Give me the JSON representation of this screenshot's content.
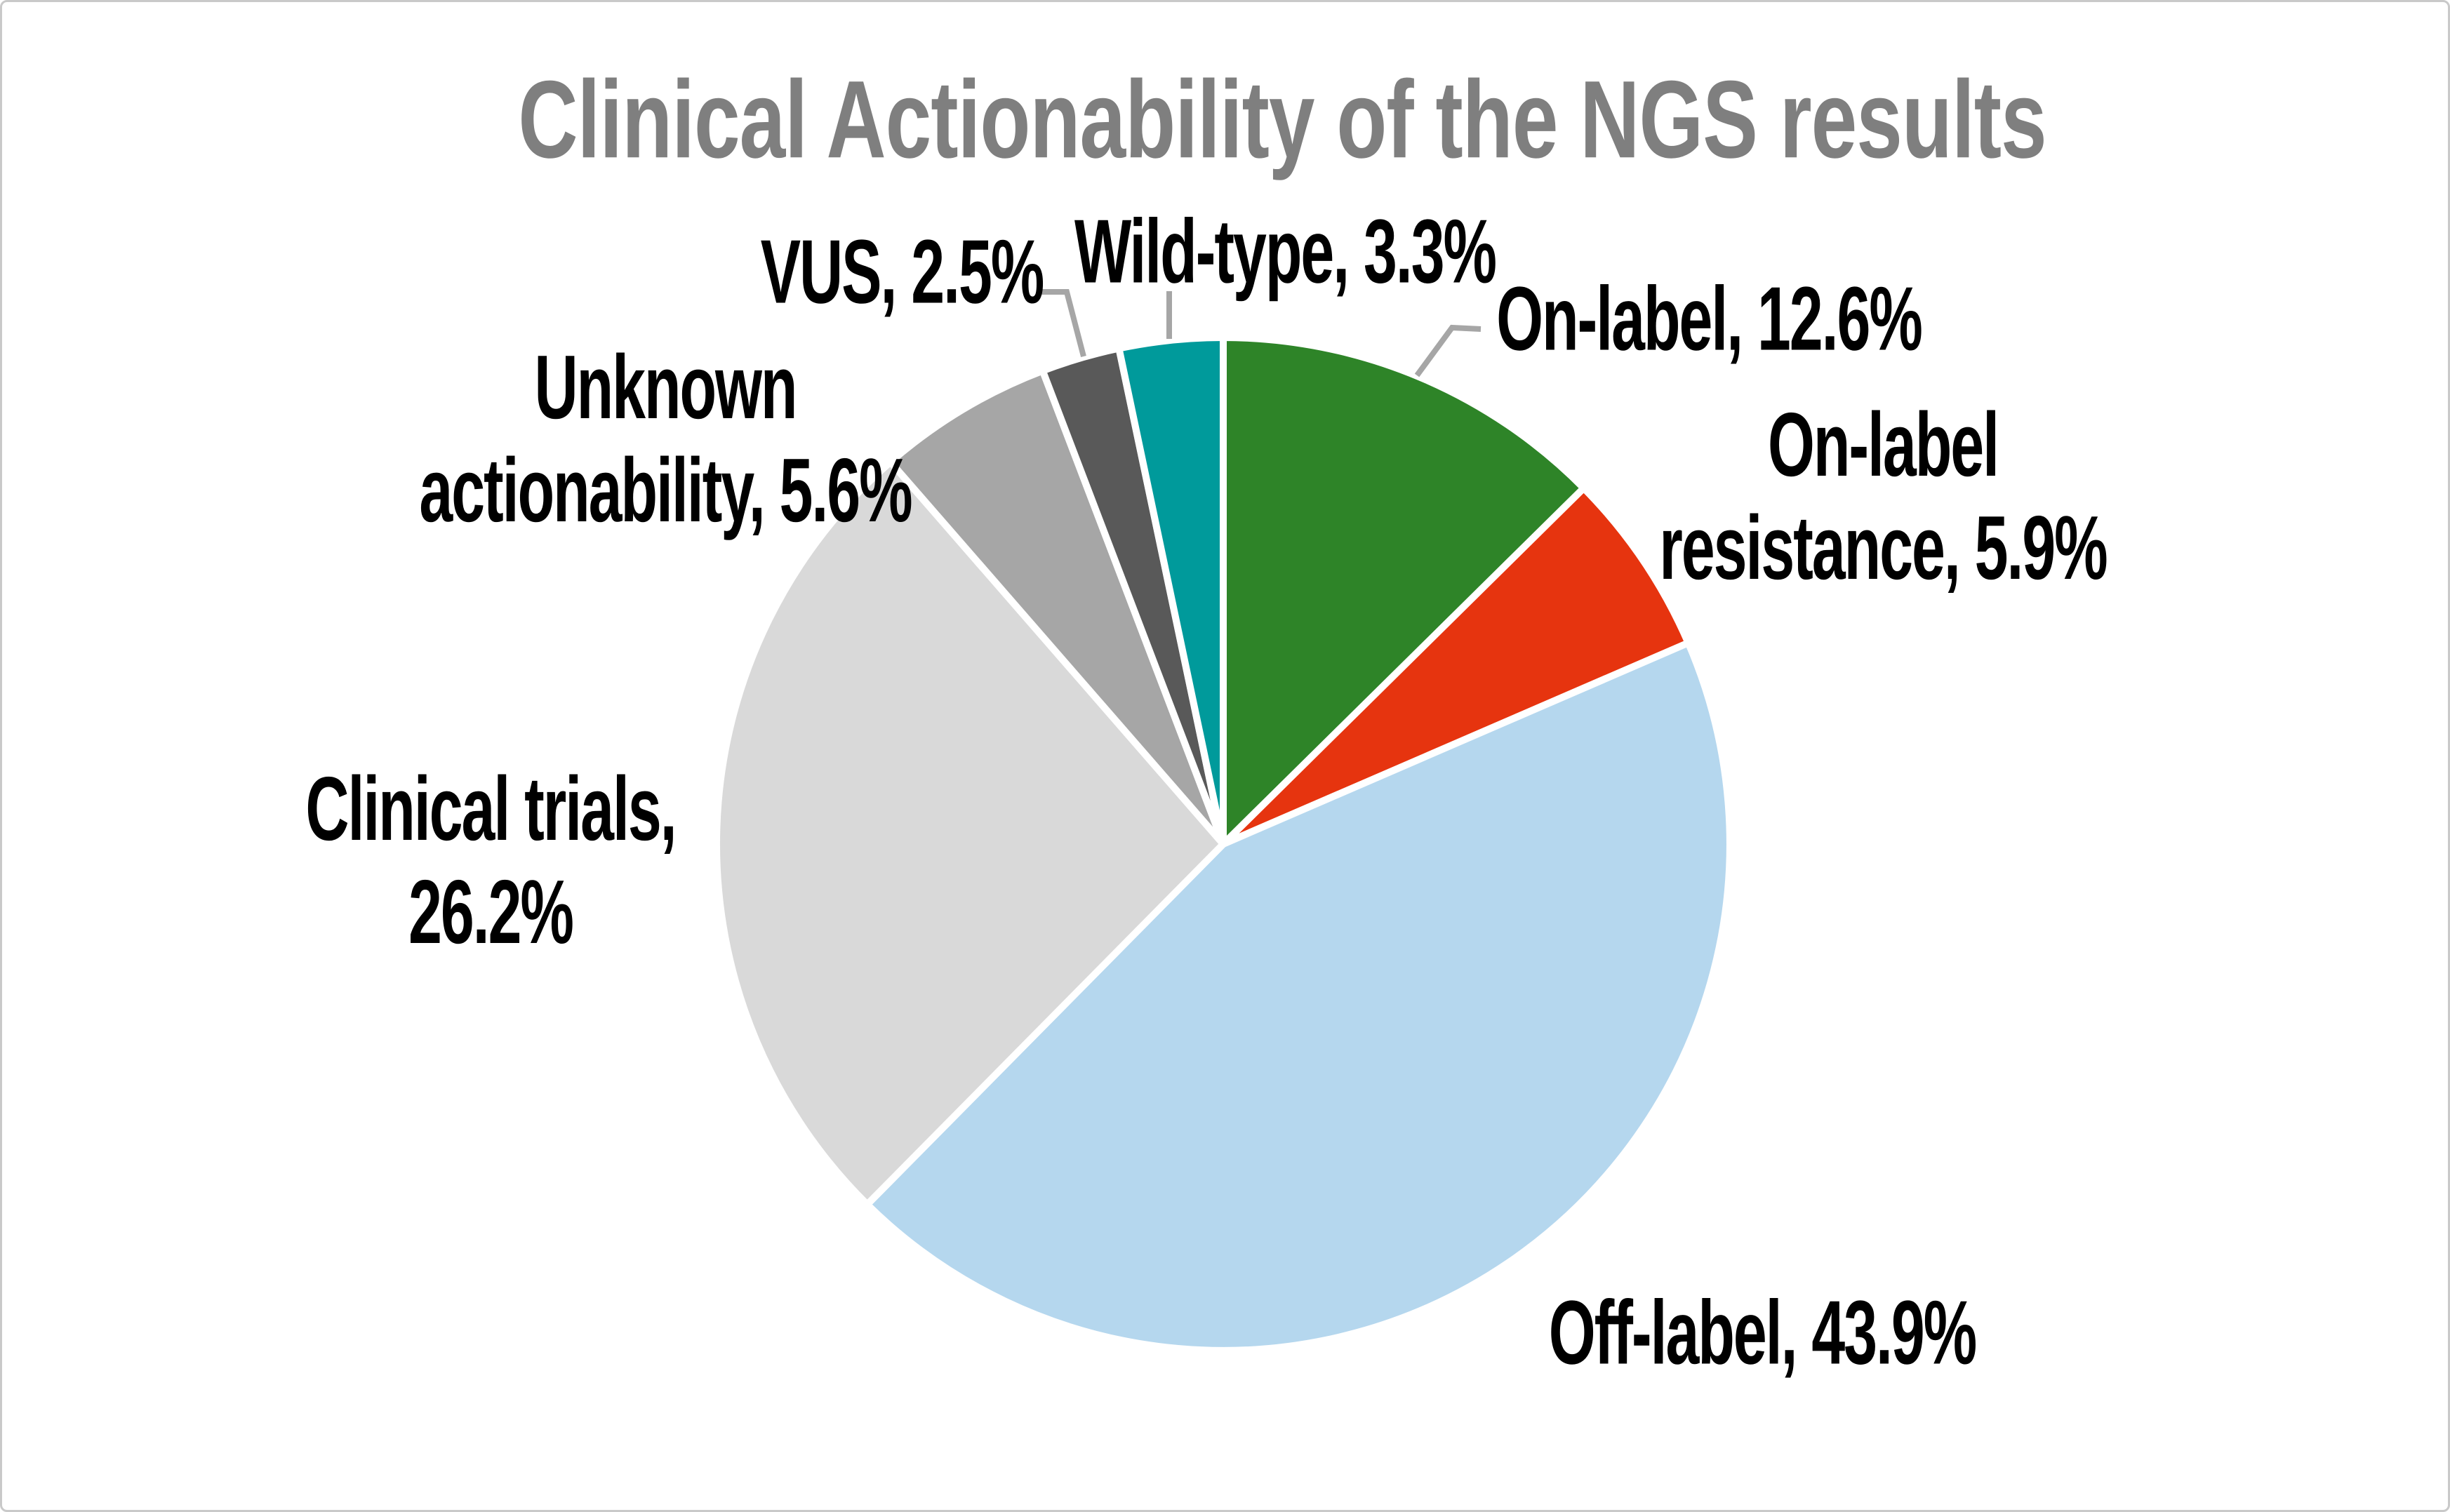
{
  "frame": {
    "background": "#FFFFFF",
    "border_color": "#C9C9C9"
  },
  "chart": {
    "title": "Clinical Actionability of the NGS results",
    "title_color": "#7F7F7F",
    "leader_line_color": "#A6A6A6",
    "slice_gap_color": "#FFFFFF"
  },
  "chart_data": {
    "type": "pie",
    "title": "Clinical Actionability of the NGS results",
    "unit": "%",
    "start_angle_deg": 0,
    "direction": "clockwise",
    "legend": "none",
    "label_style": "outside bold labels; gray leader lines for small slices",
    "slices": [
      {
        "label": "On-label",
        "value": 12.6,
        "color": "#2E8428",
        "display": "On-label, 12.6%",
        "label_lines": [
          "On-label, 12.6%"
        ]
      },
      {
        "label": "On-label resistance",
        "value": 5.9,
        "color": "#E6340F",
        "display": "On-label resistance, 5.9%",
        "label_lines": [
          "On-label",
          "resistance, 5.9%"
        ]
      },
      {
        "label": "Off-label",
        "value": 43.9,
        "color": "#B5D7EE",
        "display": "Off-label, 43.9%",
        "label_lines": [
          "Off-label, 43.9%"
        ]
      },
      {
        "label": "Clinical trials",
        "value": 26.2,
        "color": "#D9D9D9",
        "display": "Clinical trials, 26.2%",
        "label_lines": [
          "Clinical trials,",
          "26.2%"
        ]
      },
      {
        "label": "Unknown actionability",
        "value": 5.6,
        "color": "#A6A6A6",
        "display": "Unknown actionability, 5.6%",
        "label_lines": [
          "Unknown",
          "actionability, 5.6%"
        ]
      },
      {
        "label": "VUS",
        "value": 2.5,
        "color": "#595959",
        "display": "VUS, 2.5%",
        "label_lines": [
          "VUS, 2.5%"
        ]
      },
      {
        "label": "Wild-type",
        "value": 3.3,
        "color": "#009A9B",
        "display": "Wild-type, 3.3%",
        "label_lines": [
          "Wild-type, 3.3%"
        ]
      }
    ]
  }
}
